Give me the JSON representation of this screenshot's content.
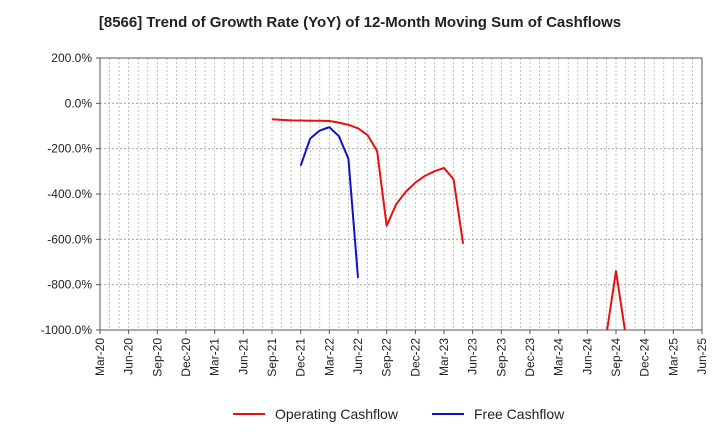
{
  "chart_data": {
    "type": "line",
    "title": "[8566]  Trend of Growth Rate (YoY) of 12-Month Moving Sum of Cashflows",
    "xlabel": "",
    "ylabel": "",
    "ylim": [
      -1000,
      200
    ],
    "y_ticks": [
      200,
      0,
      -200,
      -400,
      -600,
      -800,
      -1000
    ],
    "y_tick_labels": [
      "200.0%",
      "0.0%",
      "-200.0%",
      "-400.0%",
      "-600.0%",
      "-800.0%",
      "-1000.0%"
    ],
    "x_tick_labels": [
      "Mar-20",
      "Jun-20",
      "Sep-20",
      "Dec-20",
      "Mar-21",
      "Jun-21",
      "Sep-21",
      "Dec-21",
      "Mar-22",
      "Jun-22",
      "Sep-22",
      "Dec-22",
      "Mar-23",
      "Jun-23",
      "Sep-23",
      "Dec-23",
      "Mar-24",
      "Jun-24",
      "Sep-24",
      "Dec-24",
      "Mar-25",
      "Jun-25"
    ],
    "grid": true,
    "legend_position": "bottom",
    "series": [
      {
        "name": "Operating Cashflow",
        "color": "#e8100f",
        "segments": [
          [
            {
              "x": "Sep-21",
              "y": -70
            },
            {
              "x": "Oct-21",
              "y": -73
            },
            {
              "x": "Nov-21",
              "y": -75
            },
            {
              "x": "Dec-21",
              "y": -76
            },
            {
              "x": "Jan-22",
              "y": -77
            },
            {
              "x": "Feb-22",
              "y": -77
            },
            {
              "x": "Mar-22",
              "y": -78
            },
            {
              "x": "Apr-22",
              "y": -85
            },
            {
              "x": "May-22",
              "y": -95
            },
            {
              "x": "Jun-22",
              "y": -110
            },
            {
              "x": "Jul-22",
              "y": -140
            },
            {
              "x": "Aug-22",
              "y": -210
            },
            {
              "x": "Sep-22",
              "y": -540
            },
            {
              "x": "Oct-22",
              "y": -445
            },
            {
              "x": "Nov-22",
              "y": -390
            },
            {
              "x": "Dec-22",
              "y": -350
            },
            {
              "x": "Jan-23",
              "y": -320
            },
            {
              "x": "Feb-23",
              "y": -300
            },
            {
              "x": "Mar-23",
              "y": -285
            },
            {
              "x": "Apr-23",
              "y": -335
            },
            {
              "x": "May-23",
              "y": -620
            }
          ],
          [
            {
              "x": "Aug-24",
              "y": -1020
            },
            {
              "x": "Sep-24",
              "y": -740
            },
            {
              "x": "Oct-24",
              "y": -1020
            }
          ]
        ]
      },
      {
        "name": "Free Cashflow",
        "color": "#1010cc",
        "segments": [
          [
            {
              "x": "Dec-21",
              "y": -275
            },
            {
              "x": "Jan-22",
              "y": -155
            },
            {
              "x": "Feb-22",
              "y": -120
            },
            {
              "x": "Mar-22",
              "y": -105
            },
            {
              "x": "Apr-22",
              "y": -145
            },
            {
              "x": "May-22",
              "y": -245
            },
            {
              "x": "Jun-22",
              "y": -770
            }
          ]
        ]
      }
    ]
  }
}
